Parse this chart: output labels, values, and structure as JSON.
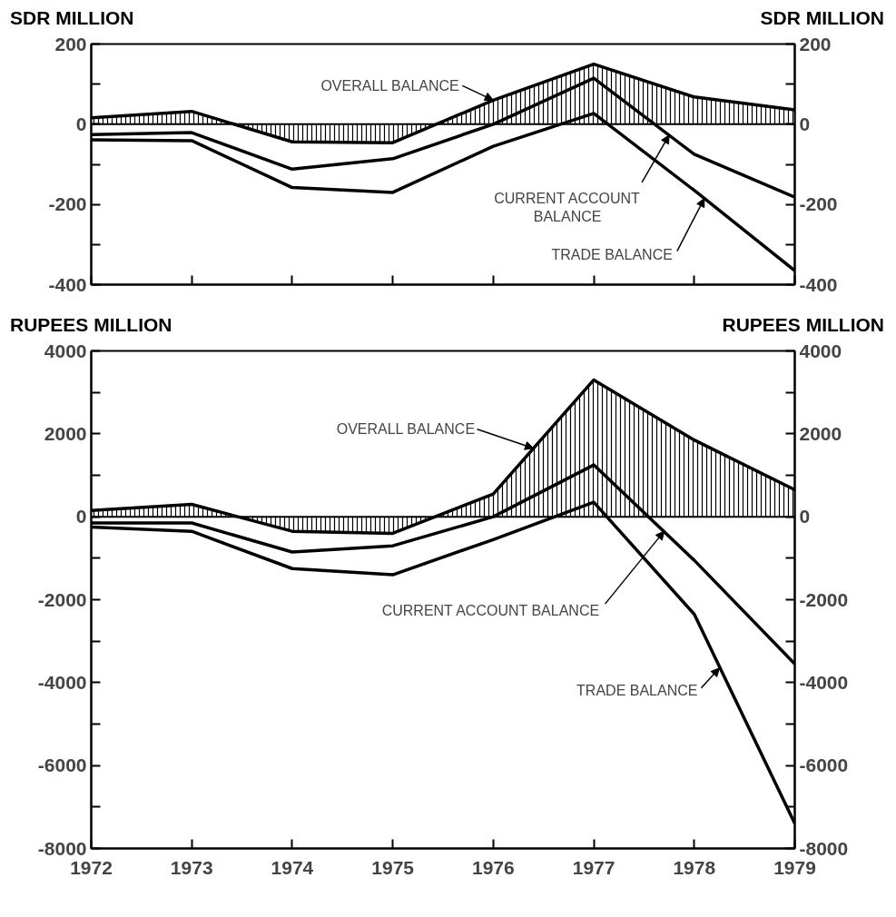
{
  "chart_data": [
    {
      "type": "line",
      "ylabel": "SDR MILLION",
      "y2label": "SDR MILLION",
      "x": [
        1972,
        1973,
        1974,
        1975,
        1976,
        1977,
        1978,
        1979
      ],
      "xlim": [
        1972,
        1979
      ],
      "xticks": [
        1972,
        1973,
        1974,
        1975,
        1976,
        1977,
        1978,
        1979
      ],
      "ylim": [
        -400,
        200
      ],
      "yticks": [
        -400,
        {
          "value": -300,
          "label": null
        },
        -200,
        {
          "value": -100,
          "label": null
        },
        0,
        {
          "value": 100,
          "label": null
        },
        200
      ],
      "y2lim": [
        -400,
        200
      ],
      "y2ticks": [
        -400,
        {
          "value": -300,
          "label": null
        },
        -200,
        {
          "value": -100,
          "label": null
        },
        0,
        {
          "value": 100,
          "label": null
        },
        200
      ],
      "tick_labels": "y",
      "grid": false,
      "ref_lines": [
        {
          "axis": "y",
          "value": 0,
          "label": null,
          "color": "#000000"
        }
      ],
      "series": [
        {
          "type": "area",
          "color": "#000000",
          "values": [
            16,
            32,
            -44,
            -46,
            60,
            150,
            68,
            36
          ]
        },
        {
          "color": "#000000",
          "values": [
            -26,
            -21,
            -112,
            -86,
            0,
            115,
            -75,
            -182
          ]
        },
        {
          "color": "#000000",
          "values": [
            -39,
            -41,
            -158,
            -170,
            -55,
            27,
            -165,
            -365
          ]
        }
      ],
      "annotations": [
        {
          "text": "OVERALL BALANCE",
          "x": 1976,
          "y": 60
        },
        {
          "text": "CURRENT ACCOUNT\nBALANCE",
          "x": 1977.75,
          "y": -27
        },
        {
          "text": "TRADE BALANCE",
          "x": 1978.1,
          "y": -185
        }
      ]
    },
    {
      "type": "line",
      "ylabel": "RUPEES MILLION",
      "y2label": "RUPEES MILLION",
      "x": [
        1972,
        1973,
        1974,
        1975,
        1976,
        1977,
        1978,
        1979
      ],
      "xlim": [
        1972,
        1979
      ],
      "xticks": [
        1972,
        1973,
        1974,
        1975,
        1976,
        1977,
        1978,
        1979
      ],
      "ylim": [
        -8000,
        4000
      ],
      "yticks": [
        -8000,
        {
          "value": -7000,
          "label": null
        },
        -6000,
        {
          "value": -5000,
          "label": null
        },
        -4000,
        {
          "value": -3000,
          "label": null
        },
        -2000,
        {
          "value": -1000,
          "label": null
        },
        0,
        {
          "value": 1000,
          "label": null
        },
        2000,
        {
          "value": 3000,
          "label": null
        },
        4000
      ],
      "y2lim": [
        -8000,
        4000
      ],
      "y2ticks": [
        -8000,
        {
          "value": -7000,
          "label": null
        },
        -6000,
        {
          "value": -5000,
          "label": null
        },
        -4000,
        {
          "value": -3000,
          "label": null
        },
        -2000,
        {
          "value": -1000,
          "label": null
        },
        0,
        {
          "value": 1000,
          "label": null
        },
        2000,
        {
          "value": 3000,
          "label": null
        },
        4000
      ],
      "grid": false,
      "ref_lines": [
        {
          "axis": "y",
          "value": 0,
          "label": null,
          "color": "#000000"
        }
      ],
      "series": [
        {
          "type": "area",
          "color": "#000000",
          "values": [
            150,
            300,
            -350,
            -400,
            550,
            3300,
            1850,
            650
          ]
        },
        {
          "color": "#000000",
          "values": [
            -150,
            -150,
            -850,
            -700,
            0,
            1250,
            -1050,
            -3550
          ]
        },
        {
          "color": "#000000",
          "values": [
            -250,
            -350,
            -1250,
            -1400,
            -550,
            350,
            -2350,
            -7400
          ]
        }
      ],
      "annotations": [
        {
          "text": "OVERALL BALANCE",
          "x": 1976.4,
          "y": 1650
        },
        {
          "text": "CURRENT ACCOUNT BALANCE",
          "x": 1977.7,
          "y": -350
        },
        {
          "text": "TRADE BALANCE",
          "x": 1978.25,
          "y": -3650
        }
      ]
    }
  ]
}
